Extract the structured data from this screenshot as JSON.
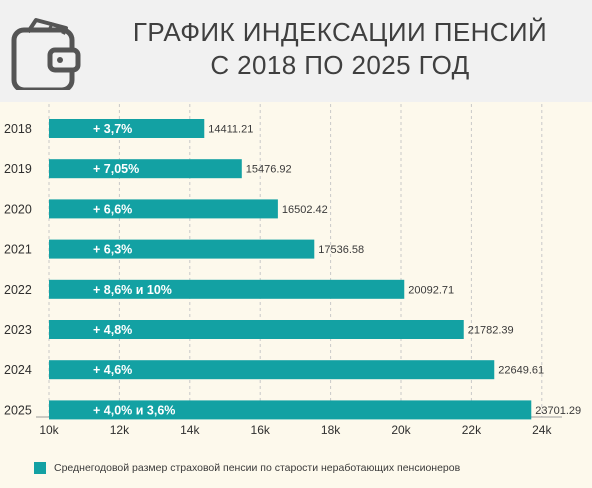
{
  "header": {
    "title_line1": "ГРАФИК ИНДЕКСАЦИИ ПЕНСИЙ",
    "title_line2": "С 2018 ПО 2025 ГОД"
  },
  "colors": {
    "bar": "#13a1a3",
    "header_bg": "#f1f1f1",
    "page_bg": "#fdf9ec"
  },
  "icons": [
    "wallet-icon"
  ],
  "chart_data": {
    "type": "bar",
    "orientation": "horizontal",
    "categories": [
      "2018",
      "2019",
      "2020",
      "2021",
      "2022",
      "2023",
      "2024",
      "2025"
    ],
    "values": [
      14411.21,
      15476.92,
      16502.42,
      17536.58,
      20092.71,
      21782.39,
      22649.61,
      23701.29
    ],
    "value_labels": [
      "14411.21",
      "15476.92",
      "16502.42",
      "17536.58",
      "20092.71",
      "21782.39",
      "22649.61",
      "23701.29"
    ],
    "bar_annotations": [
      "+ 3,7%",
      "+ 7,05%",
      "+ 6,6%",
      "+ 6,3%",
      "+ 8,6% и 10%",
      "+ 4,8%",
      "+ 4,6%",
      "+ 4,0% и 3,6%"
    ],
    "xlim": [
      10000,
      25000
    ],
    "xticks": [
      10000,
      12000,
      14000,
      16000,
      18000,
      20000,
      22000,
      24000
    ],
    "xtick_labels": [
      "10k",
      "12k",
      "14k",
      "16k",
      "18k",
      "20k",
      "22k",
      "24k"
    ],
    "grid": "vertical dashed",
    "legend_position": "bottom-left",
    "series": [
      {
        "name": "Среднегодовой размер страховой пенсии по старости неработающих пенсионеров"
      }
    ]
  }
}
